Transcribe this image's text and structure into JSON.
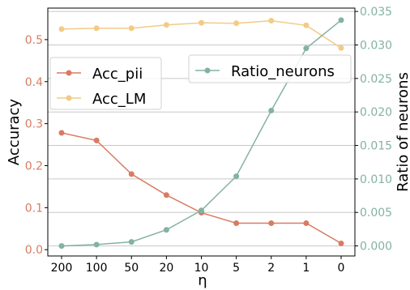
{
  "chart_data": {
    "type": "line",
    "xlabel": "η",
    "ylabel_left": "Accuracy",
    "ylabel_right": "Ratio of neurons",
    "categories": [
      "200",
      "100",
      "50",
      "20",
      "10",
      "5",
      "2",
      "1",
      "0"
    ],
    "y_left_ticks": [
      "0.0",
      "0.1",
      "0.2",
      "0.3",
      "0.4",
      "0.5"
    ],
    "y_left_lim": [
      -0.015,
      0.575
    ],
    "y_right_ticks": [
      "0.000",
      "0.005",
      "0.010",
      "0.015",
      "0.020",
      "0.025",
      "0.030",
      "0.035"
    ],
    "y_right_lim": [
      -0.0015,
      0.0355
    ],
    "grid": "horizontal lines at right-axis ticks",
    "series": [
      {
        "name": "Acc_pii",
        "axis": "left",
        "color": "#d97b62",
        "values": [
          0.278,
          0.26,
          0.18,
          0.13,
          0.088,
          0.063,
          0.063,
          0.063,
          0.015
        ]
      },
      {
        "name": "Acc_LM",
        "axis": "left",
        "color": "#f2cb86",
        "values": [
          0.525,
          0.527,
          0.527,
          0.535,
          0.54,
          0.539,
          0.545,
          0.534,
          0.48
        ]
      },
      {
        "name": "Ratio_neurons",
        "axis": "right",
        "color": "#84b2a2",
        "values": [
          0.0,
          0.0002,
          0.0006,
          0.0024,
          0.0053,
          0.0104,
          0.0202,
          0.0295,
          0.0337
        ]
      }
    ],
    "legend_left_placement": "upper-left",
    "legend_right_placement": "upper-right"
  }
}
